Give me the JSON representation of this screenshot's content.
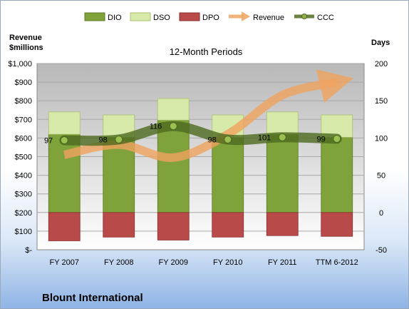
{
  "chart_data": {
    "type": "bar",
    "title": "12-Month Periods",
    "company": "Blount International",
    "left_axis_label_line1": "Revenue",
    "left_axis_label_line2": "$millions",
    "right_axis_label": "Days",
    "categories": [
      "FY 2007",
      "FY 2008",
      "FY 2009",
      "FY 2010",
      "FY 2011",
      "TTM 6-2012"
    ],
    "left_ticks": [
      "$-",
      "$100",
      "$200",
      "$300",
      "$400",
      "$500",
      "$600",
      "$700",
      "$800",
      "$900",
      "$1,000"
    ],
    "right_ticks": [
      "-50",
      "0",
      "50",
      "100",
      "150",
      "200"
    ],
    "ylim_left": [
      0,
      1000
    ],
    "ylim_right": [
      -50,
      200
    ],
    "grid": true,
    "legend_position": "top",
    "series": [
      {
        "name": "DIO",
        "type": "stacked-bar",
        "axis": "right",
        "values": [
          105,
          101,
          124,
          101,
          105,
          101
        ]
      },
      {
        "name": "DSO",
        "type": "stacked-bar",
        "axis": "right",
        "values": [
          30,
          30,
          29,
          30,
          30,
          30
        ]
      },
      {
        "name": "DPO",
        "type": "negative-bar",
        "axis": "right",
        "values": [
          -38,
          -33,
          -37,
          -33,
          -31,
          -32
        ]
      },
      {
        "name": "Revenue",
        "type": "line",
        "axis": "left",
        "values": [
          510,
          565,
          495,
          620,
          830,
          900
        ]
      },
      {
        "name": "CCC",
        "type": "line",
        "axis": "right",
        "values": [
          97,
          98,
          116,
          98,
          101,
          99
        ],
        "labels": [
          "97",
          "98",
          "116",
          "98",
          "101",
          "99"
        ]
      }
    ],
    "colors": {
      "DIO": "#7fa23a",
      "DSO": "#d7eaa9",
      "DPO": "#b94a4a",
      "Revenue": "#f0a35e",
      "CCC": "#4d6a1f",
      "grid": "#a8a8a8"
    }
  }
}
